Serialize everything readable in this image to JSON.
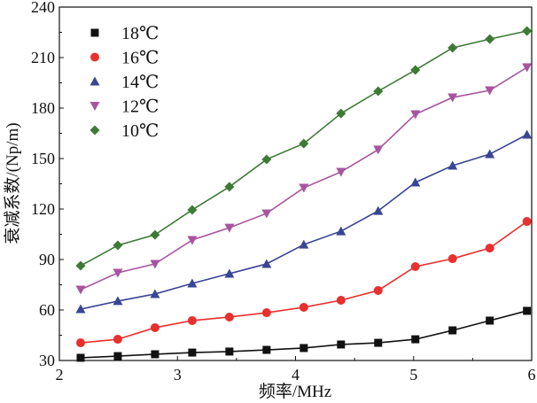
{
  "chart_data": {
    "type": "line",
    "title": "",
    "xlabel": "频率/MHz",
    "ylabel": "衰减系数/(Np/m)",
    "xlim": [
      2,
      6
    ],
    "ylim": [
      30,
      240
    ],
    "xticks": [
      2,
      3,
      4,
      5,
      6
    ],
    "yticks": [
      30,
      60,
      90,
      120,
      150,
      180,
      210,
      240
    ],
    "grid": false,
    "legend_position": "top-left",
    "x": [
      2.18,
      2.495,
      2.81,
      3.125,
      3.44,
      3.755,
      4.07,
      4.385,
      4.7,
      5.015,
      5.33,
      5.645,
      5.96
    ],
    "series": [
      {
        "name": "18℃",
        "color": "#111111",
        "marker": "square",
        "values": [
          31.6,
          32.6,
          33.7,
          34.7,
          35.3,
          36.3,
          37.4,
          39.5,
          40.5,
          42.6,
          47.9,
          53.7,
          59.5
        ]
      },
      {
        "name": "16℃",
        "color": "#e8302e",
        "marker": "circle",
        "values": [
          40.5,
          42.6,
          49.5,
          53.7,
          55.8,
          58.4,
          61.6,
          65.8,
          71.6,
          85.8,
          90.5,
          96.8,
          112.6
        ]
      },
      {
        "name": "14℃",
        "color": "#3a4594",
        "marker": "triangle-up",
        "values": [
          60.5,
          65.3,
          69.5,
          75.8,
          81.6,
          87.4,
          98.9,
          106.8,
          118.9,
          135.8,
          145.8,
          152.6,
          164.2
        ]
      },
      {
        "name": "12℃",
        "color": "#a855a0",
        "marker": "triangle-down",
        "values": [
          72.1,
          82.1,
          87.4,
          101.6,
          108.9,
          117.4,
          132.6,
          142.1,
          155.3,
          176.3,
          186.3,
          190.5,
          204.2
        ]
      },
      {
        "name": "10℃",
        "color": "#3d7a35",
        "marker": "diamond",
        "values": [
          86.3,
          98.4,
          104.7,
          119.5,
          133.2,
          149.5,
          158.9,
          176.8,
          190.0,
          202.6,
          215.8,
          221.0,
          225.8
        ]
      }
    ]
  }
}
